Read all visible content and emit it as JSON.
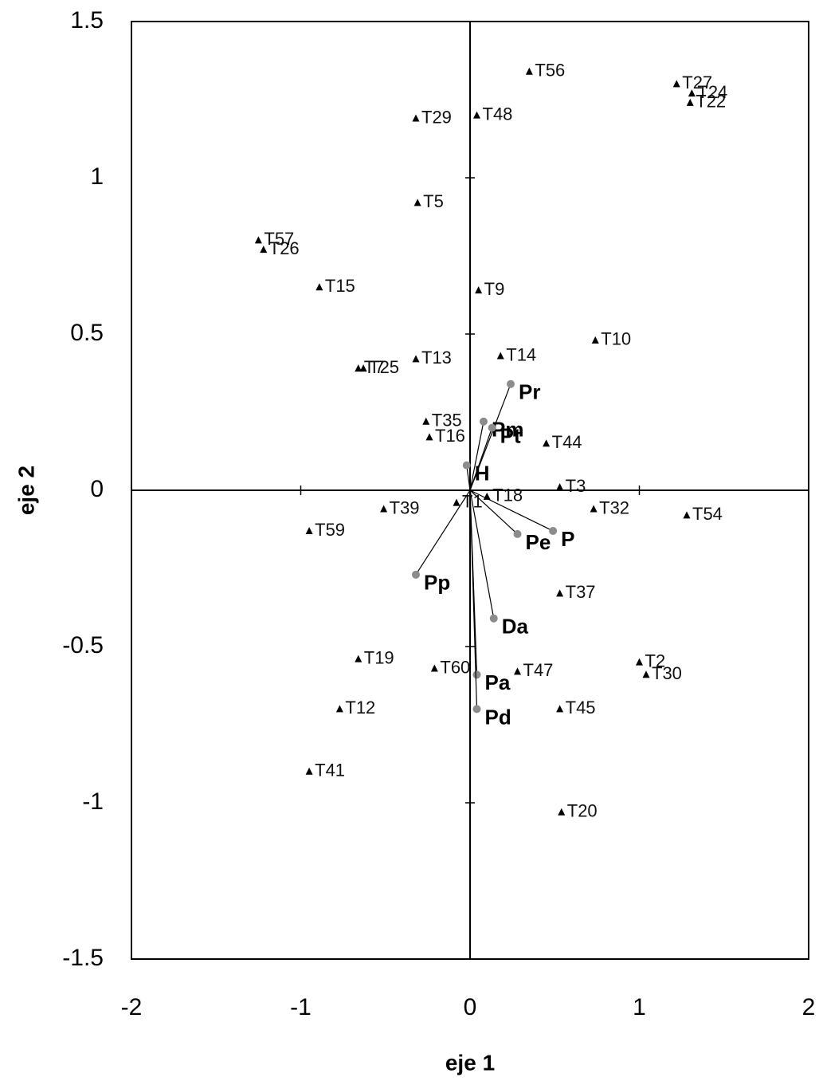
{
  "chart_data": {
    "type": "scatter",
    "x_label": "eje 1",
    "y_label": "eje 2",
    "xlim": [
      -2,
      2
    ],
    "ylim": [
      -1.5,
      1.5
    ],
    "xticks": [
      -2,
      -1,
      0,
      1,
      2
    ],
    "yticks": [
      -1.5,
      -1,
      -0.5,
      0,
      0.5,
      1,
      1.5
    ],
    "points": {
      "color": "#000000",
      "labels": [
        "T56",
        "T27",
        "T24",
        "T22",
        "T29",
        "T48",
        "T5",
        "T57",
        "T26",
        "T15",
        "T9",
        "T10",
        "T13",
        "T14",
        "T7",
        "T25",
        "T35",
        "T16",
        "T44",
        "T3",
        "T32",
        "T54",
        "T59",
        "T39",
        "T1",
        "T18",
        "T37",
        "T19",
        "T60",
        "T47",
        "T2",
        "T30",
        "T12",
        "T45",
        "T41",
        "T20"
      ],
      "x": [
        0.35,
        1.22,
        1.31,
        1.3,
        -0.32,
        0.04,
        -0.31,
        -1.25,
        -1.22,
        -0.89,
        0.05,
        0.74,
        -0.32,
        0.18,
        -0.66,
        -0.63,
        -0.26,
        -0.24,
        0.45,
        0.53,
        0.73,
        1.28,
        -0.95,
        -0.51,
        -0.08,
        0.1,
        0.53,
        -0.66,
        -0.21,
        0.28,
        1.0,
        1.04,
        -0.77,
        0.53,
        -0.95,
        0.54
      ],
      "y": [
        1.34,
        1.3,
        1.27,
        1.24,
        1.19,
        1.2,
        0.92,
        0.8,
        0.77,
        0.65,
        0.64,
        0.48,
        0.42,
        0.43,
        0.39,
        0.39,
        0.22,
        0.17,
        0.15,
        0.01,
        -0.06,
        -0.08,
        -0.13,
        -0.06,
        -0.04,
        -0.02,
        -0.33,
        -0.54,
        -0.57,
        -0.58,
        -0.55,
        -0.59,
        -0.7,
        -0.7,
        -0.9,
        -1.03
      ]
    },
    "vectors": {
      "color": "#8c8c8c",
      "labels": [
        "Pm",
        "Pr",
        "Pt",
        "H",
        "P",
        "Pe",
        "Pp",
        "Da",
        "Pa",
        "Pd"
      ],
      "x": [
        0.08,
        0.24,
        0.13,
        -0.02,
        0.49,
        0.28,
        -0.32,
        0.14,
        0.04,
        0.04
      ],
      "y": [
        0.22,
        0.34,
        0.2,
        0.08,
        -0.13,
        -0.14,
        -0.27,
        -0.41,
        -0.59,
        -0.7
      ]
    }
  }
}
